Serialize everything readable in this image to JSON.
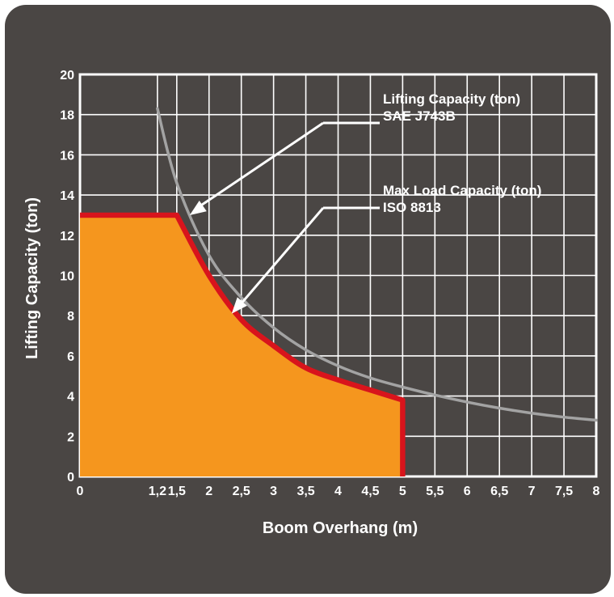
{
  "chart_data": {
    "type": "area",
    "xlabel": "Boom Overhang (m)",
    "ylabel": "Lifting Capacity (ton)",
    "xlim": [
      0,
      8
    ],
    "ylim": [
      0,
      20
    ],
    "x_ticks": [
      "0",
      "1,2",
      "1,5",
      "2",
      "2,5",
      "3",
      "3,5",
      "4",
      "4,5",
      "5",
      "5,5",
      "6",
      "6,5",
      "7",
      "7,5",
      "8"
    ],
    "x_tick_values": [
      0,
      1.2,
      1.5,
      2,
      2.5,
      3,
      3.5,
      4,
      4.5,
      5,
      5.5,
      6,
      6.5,
      7,
      7.5,
      8
    ],
    "y_ticks": [
      "0",
      "2",
      "4",
      "6",
      "8",
      "10",
      "12",
      "14",
      "16",
      "18",
      "20"
    ],
    "y_tick_values": [
      0,
      2,
      4,
      6,
      8,
      10,
      12,
      14,
      16,
      18,
      20
    ],
    "grid": true,
    "series": [
      {
        "name": "Lifting Capacity (ton)",
        "name_line2": "SAE J743B",
        "color": "#a3a3a3",
        "x": [
          1.2,
          1.5,
          2,
          2.5,
          3,
          3.5,
          4,
          4.5,
          5,
          5.5,
          6,
          6.5,
          7,
          7.5,
          8
        ],
        "y": [
          18.3,
          14.6,
          11,
          8.9,
          7.4,
          6.3,
          5.5,
          4.9,
          4.45,
          4.05,
          3.7,
          3.4,
          3.15,
          2.95,
          2.8
        ]
      },
      {
        "name": "Max Load Capacity (ton)",
        "name_line2": "ISO 8813",
        "color": "#d8141c",
        "fill": "#f5961e",
        "x": [
          0,
          1.5,
          2,
          2.5,
          3,
          3.5,
          4,
          4.5,
          5,
          5
        ],
        "y": [
          13,
          13,
          10,
          7.8,
          6.5,
          5.4,
          4.8,
          4.3,
          3.8,
          0
        ]
      }
    ],
    "annotations": [
      {
        "lines": [
          "Lifting Capacity (ton)",
          "SAE J743B"
        ],
        "series": 0
      },
      {
        "lines": [
          "Max Load Capacity (ton)",
          "ISO 8813"
        ],
        "series": 1
      }
    ]
  },
  "colors": {
    "background": "#4a4644",
    "grid": "#ffffff",
    "text": "#ffffff"
  }
}
